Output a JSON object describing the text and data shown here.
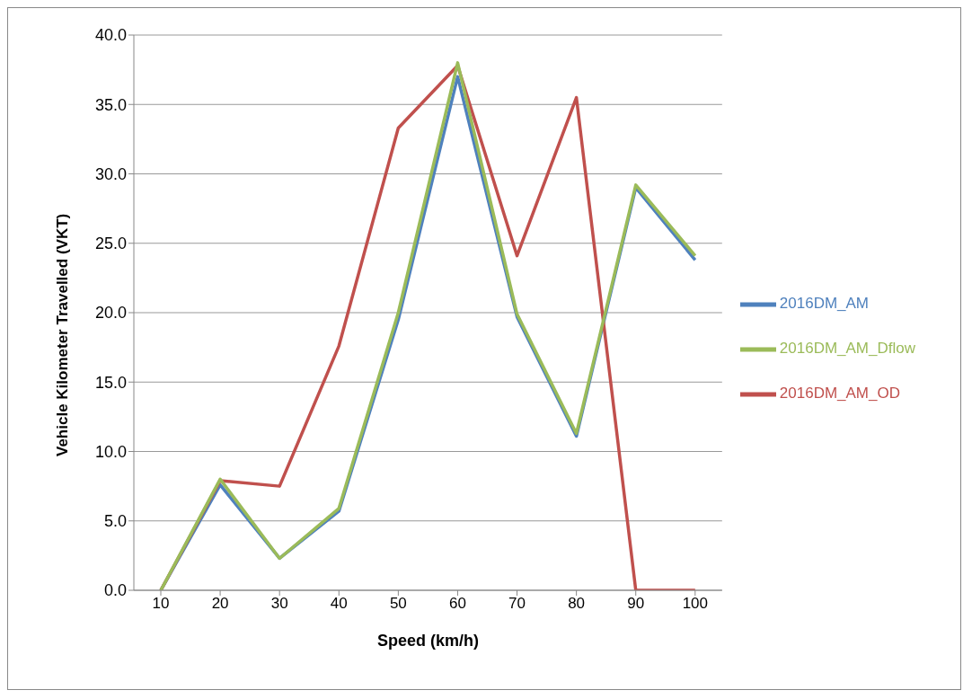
{
  "chart_data": {
    "type": "line",
    "xlabel": "Speed (km/h)",
    "ylabel": "Vehicle Kilometer Travelled (VKT)",
    "categories": [
      "10",
      "20",
      "30",
      "40",
      "50",
      "60",
      "70",
      "80",
      "90",
      "100"
    ],
    "series": [
      {
        "name": "2016DM_AM",
        "color": "#4f81bd",
        "values": [
          0,
          7.6,
          2.3,
          5.7,
          19.5,
          37.0,
          19.7,
          11.1,
          29.0,
          23.8
        ]
      },
      {
        "name": "2016DM_AM_OD",
        "color": "#c0504d",
        "values": [
          0,
          7.9,
          7.5,
          17.6,
          33.3,
          37.8,
          24.1,
          35.5,
          0,
          0
        ]
      },
      {
        "name": "2016DM_AM_Dflow",
        "color": "#9bbb59",
        "values": [
          0,
          8.0,
          2.3,
          5.9,
          20.0,
          38.0,
          19.9,
          11.3,
          29.2,
          24.1
        ]
      }
    ],
    "ylim": [
      0,
      40
    ],
    "yticks": [
      {
        "value": 0,
        "label": "0.0"
      },
      {
        "value": 5,
        "label": "5.0"
      },
      {
        "value": 10,
        "label": "10.0"
      },
      {
        "value": 15,
        "label": "15.0"
      },
      {
        "value": 20,
        "label": "20.0"
      },
      {
        "value": 25,
        "label": "25.0"
      },
      {
        "value": 30,
        "label": "30.0"
      },
      {
        "value": 35,
        "label": "35.0"
      },
      {
        "value": 40,
        "label": "40.0"
      }
    ],
    "grid": "y",
    "legend": "right",
    "marker": "none",
    "line_style": "solid"
  }
}
